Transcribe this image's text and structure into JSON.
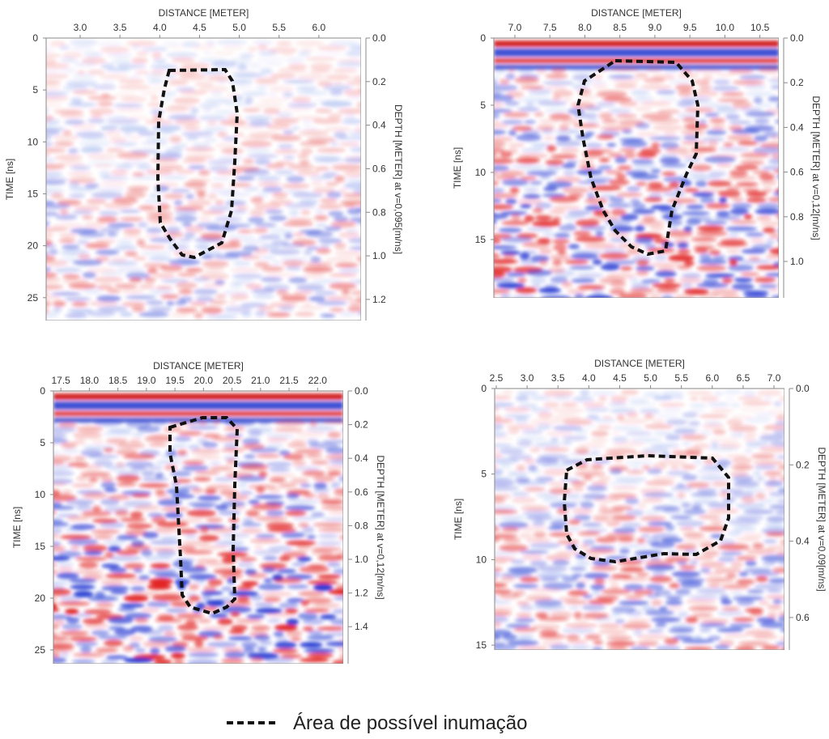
{
  "panels": [
    {
      "x_label": "DISTANCE [METER]",
      "y_label": "TIME [ns]",
      "y2_label": "DEPTH [METER] at v=0,095[m/ns]",
      "xlim": [
        2.573,
        6.53
      ],
      "xticks": [
        {
          "value": 3,
          "label": "3.0"
        },
        3.5,
        {
          "value": 4,
          "label": "4.0"
        },
        4.5,
        {
          "value": 5,
          "label": "5.0"
        },
        5.5,
        {
          "value": 6,
          "label": "6.0"
        }
      ],
      "ylim": [
        0,
        27.2
      ],
      "yticks": [
        0,
        5,
        10,
        15,
        20,
        25
      ],
      "y2lim": [
        0,
        1.297
      ],
      "y2ticks": [
        {
          "value": 0,
          "label": "0.0"
        },
        0.2,
        0.4,
        0.6,
        0.8,
        {
          "value": 1,
          "label": "1.0"
        },
        1.2
      ]
    },
    {
      "x_label": "DISTANCE [METER]",
      "y_label": "TIME [ns]",
      "y2_label": "DEPTH [METER] at v=0,12[m/ns]",
      "xlim": [
        6.7,
        10.77
      ],
      "xticks": [
        {
          "value": 7,
          "label": "7.0"
        },
        7.5,
        {
          "value": 8,
          "label": "8.0"
        },
        8.5,
        {
          "value": 9,
          "label": "9.0"
        },
        9.5,
        {
          "value": 10,
          "label": "10.0"
        },
        10.5
      ],
      "ylim": [
        0,
        19.34
      ],
      "yticks": [
        0,
        5,
        10,
        15
      ],
      "y2lim": [
        0,
        1.163
      ],
      "y2ticks": [
        {
          "value": 0,
          "label": "0.0"
        },
        0.2,
        0.4,
        0.6,
        0.8,
        {
          "value": 1,
          "label": "1.0"
        }
      ]
    },
    {
      "x_label": "DISTANCE [METER]",
      "y_label": "TIME [ns]",
      "y2_label": "DEPTH [METER] at v=0,12[m/ns]",
      "xlim": [
        17.37,
        22.45
      ],
      "xticks": [
        17.5,
        {
          "value": 18,
          "label": "18.0"
        },
        18.5,
        {
          "value": 19,
          "label": "19.0"
        },
        19.5,
        {
          "value": 20,
          "label": "20.0"
        },
        20.5,
        {
          "value": 21,
          "label": "21.0"
        },
        21.5,
        {
          "value": 22,
          "label": "22.0"
        }
      ],
      "ylim": [
        0,
        26.33
      ],
      "yticks": [
        0,
        5,
        10,
        15,
        20,
        25
      ],
      "y2lim": [
        0,
        1.62
      ],
      "y2ticks": [
        {
          "value": 0,
          "label": "0.0"
        },
        0.2,
        0.4,
        0.6,
        0.8,
        {
          "value": 1,
          "label": "1.0"
        },
        1.2,
        1.4
      ]
    },
    {
      "x_label": "DISTANCE [METER]",
      "y_label": "TIME [ns]",
      "y2_label": "DEPTH [METER] at v=0,09[m/ns]",
      "xlim": [
        2.474,
        7.17
      ],
      "xticks": [
        2.5,
        {
          "value": 3,
          "label": "3.0"
        },
        3.5,
        {
          "value": 4,
          "label": "4.0"
        },
        4.5,
        {
          "value": 5,
          "label": "5.0"
        },
        5.5,
        {
          "value": 6,
          "label": "6.0"
        },
        6.5,
        {
          "value": 7,
          "label": "7.0"
        }
      ],
      "ylim": [
        0,
        15.28
      ],
      "yticks": [
        0,
        5,
        10,
        15
      ],
      "y2lim": [
        0,
        0.685
      ],
      "y2ticks": [
        {
          "value": 0,
          "label": "0.0"
        },
        0.2,
        0.4,
        0.6
      ]
    }
  ],
  "legend": {
    "label": "Área de possível inumação"
  }
}
